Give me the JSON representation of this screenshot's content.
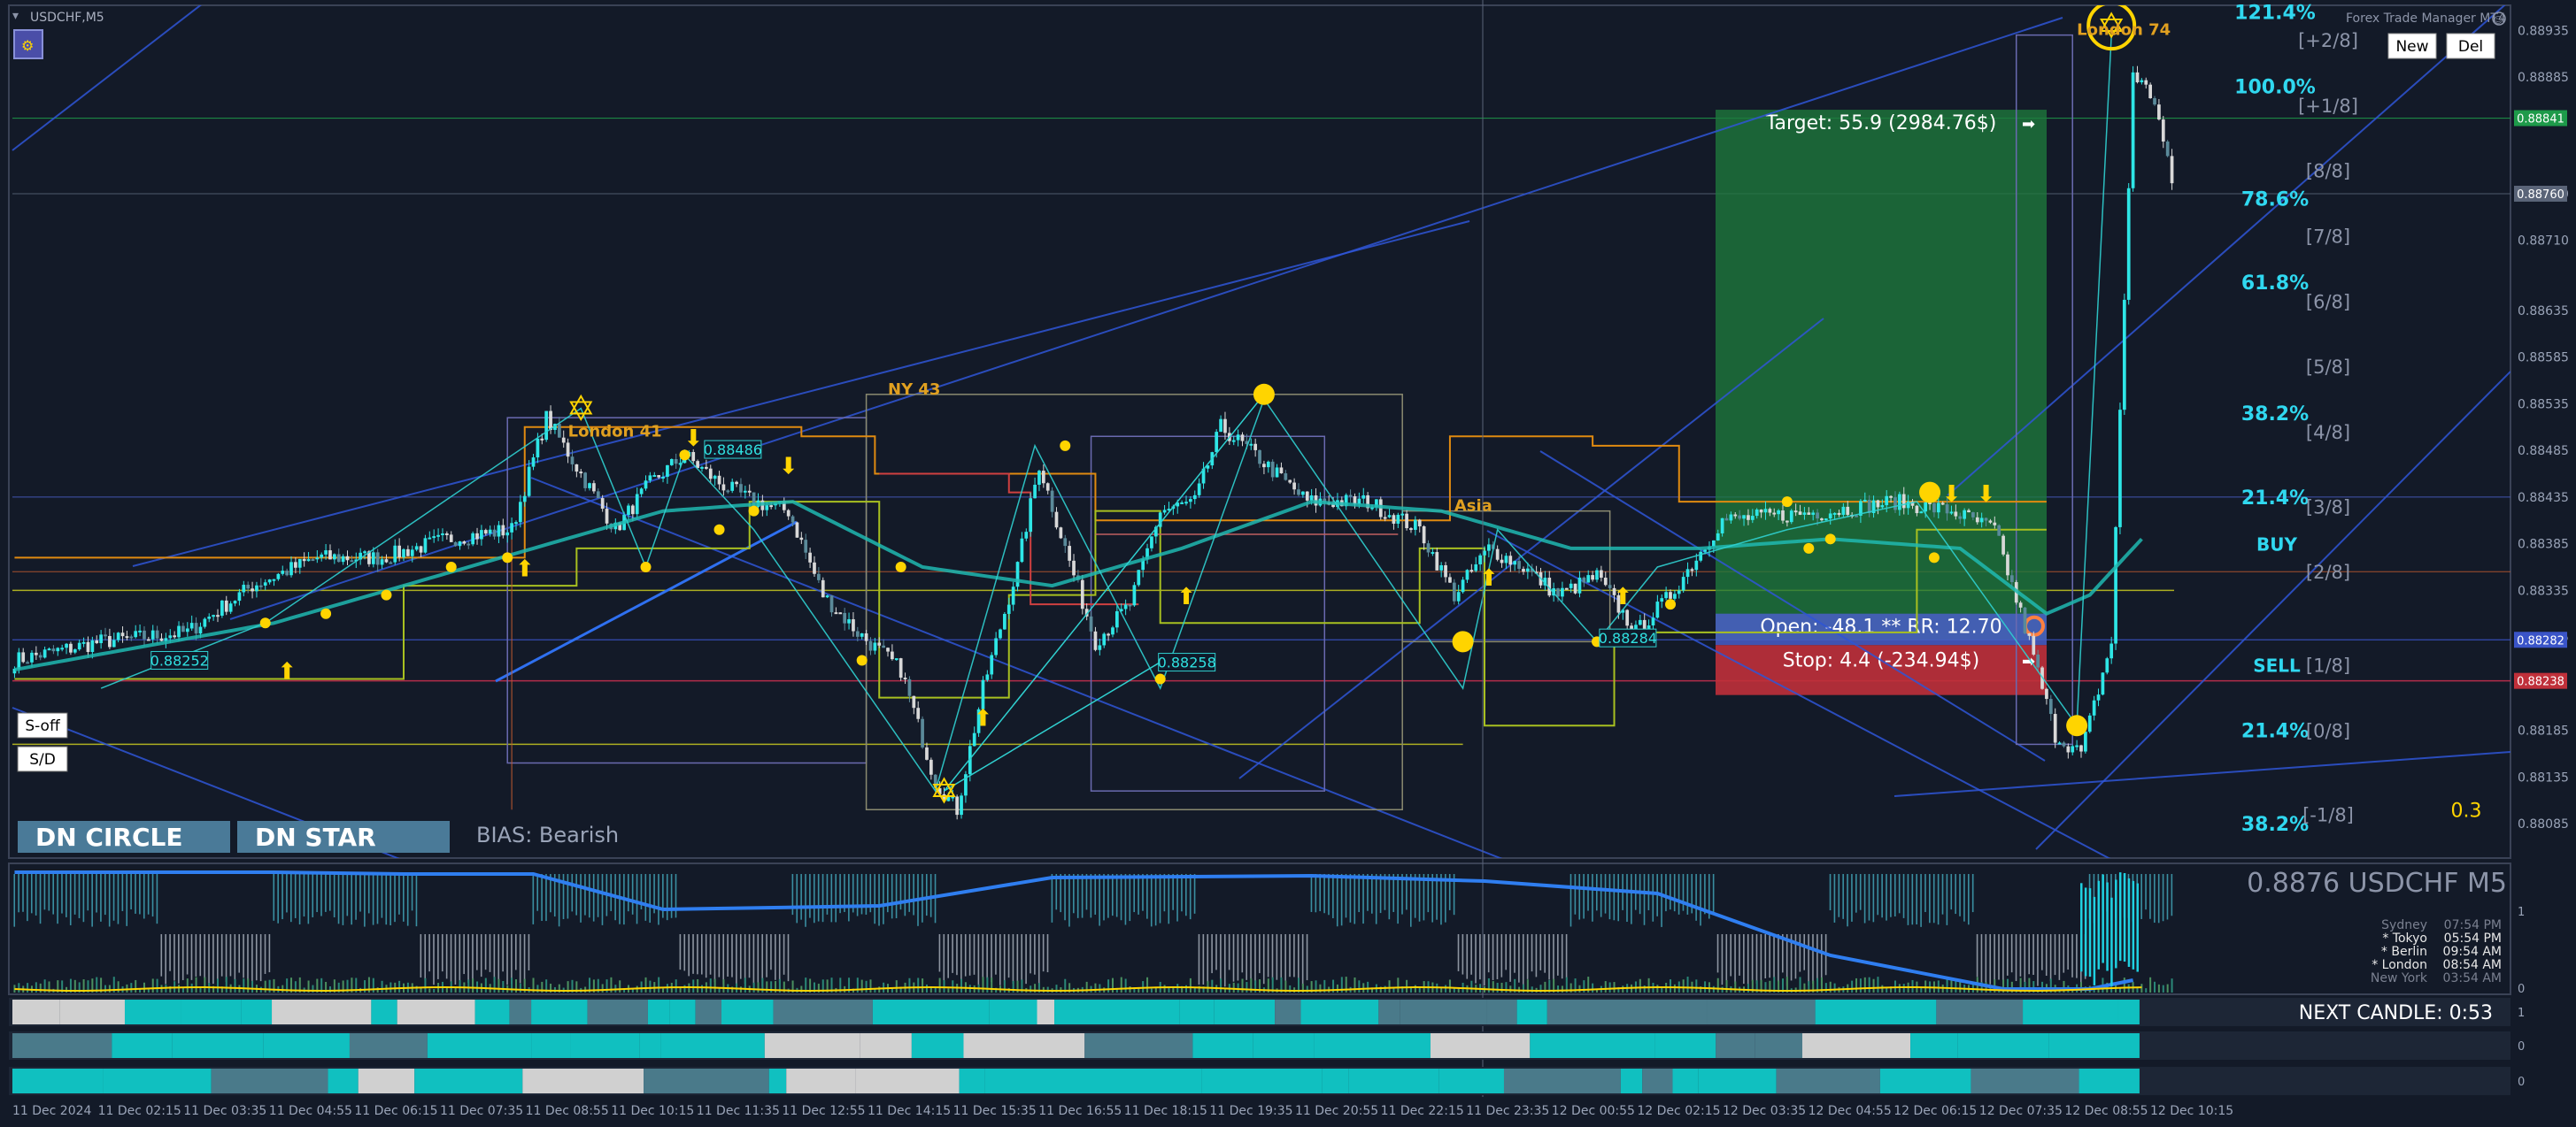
{
  "window": {
    "symbol_title": "USDCHF,M5",
    "toolbar_icon": "js-icon",
    "brand": "Forex Trade Manager MT4",
    "brand_icon": "smiley-icon",
    "new_label": "New",
    "del_label": "Del",
    "s_off_label": "S-off",
    "s_d_label": "S/D"
  },
  "colors": {
    "background": "#131a28",
    "bull_candle": "#2ee6e6",
    "bear_candle": "#d8d8d8",
    "target_zone": "#1e7a3c",
    "stop_zone": "#c0303a",
    "open_zone": "#4a5ec8",
    "fib_label": "#30d8f0",
    "murrey_label": "#8c94a8",
    "arrow_yellow": "#ffd400",
    "session_label": "#e0a020",
    "ma_teal": "#20b8b0",
    "trend_blue": "#2f55d6"
  },
  "chart_data": {
    "type": "candlestick",
    "symbol": "USDCHF",
    "timeframe": "M5",
    "ylim": [
      0.8805,
      0.8896
    ],
    "price_ticks": [
      "0.88935",
      "0.88885",
      "0.88760",
      "0.88710",
      "0.88635",
      "0.88585",
      "0.88535",
      "0.88485",
      "0.88435",
      "0.88385",
      "0.88335",
      "0.88285",
      "0.88185",
      "0.88135",
      "0.88085"
    ],
    "price_tags": [
      {
        "label": "0.88841",
        "price": 0.88841,
        "color": "#1e9a4a"
      },
      {
        "label": "0.88760",
        "price": 0.8876,
        "color": "#5a6478"
      },
      {
        "label": "0.88282",
        "price": 0.88282,
        "color": "#3a54c8"
      },
      {
        "label": "0.88238",
        "price": 0.88238,
        "color": "#c0303a"
      }
    ],
    "time_labels": [
      "11 Dec 2024",
      "11 Dec 02:15",
      "11 Dec 03:35",
      "11 Dec 04:55",
      "11 Dec 06:15",
      "11 Dec 07:35",
      "11 Dec 08:55",
      "11 Dec 10:15",
      "11 Dec 11:35",
      "11 Dec 12:55",
      "11 Dec 14:15",
      "11 Dec 15:35",
      "11 Dec 16:55",
      "11 Dec 18:15",
      "11 Dec 19:35",
      "11 Dec 20:55",
      "11 Dec 22:15",
      "11 Dec 23:35",
      "12 Dec 00:55",
      "12 Dec 02:15",
      "12 Dec 03:35",
      "12 Dec 04:55",
      "12 Dec 06:15",
      "12 Dec 07:35",
      "12 Dec 08:55",
      "12 Dec 10:15"
    ],
    "price_anchors": [
      [
        0,
        0.8826
      ],
      [
        20,
        0.8828
      ],
      [
        40,
        0.8829
      ],
      [
        55,
        0.8834
      ],
      [
        70,
        0.8837
      ],
      [
        85,
        0.8837
      ],
      [
        100,
        0.8839
      ],
      [
        115,
        0.884
      ],
      [
        123,
        0.8852
      ],
      [
        131,
        0.8846
      ],
      [
        139,
        0.884
      ],
      [
        147,
        0.8845
      ],
      [
        155,
        0.8848
      ],
      [
        163,
        0.8845
      ],
      [
        171,
        0.8843
      ],
      [
        179,
        0.8842
      ],
      [
        187,
        0.8833
      ],
      [
        195,
        0.8829
      ],
      [
        205,
        0.8825
      ],
      [
        213,
        0.8813
      ],
      [
        218,
        0.881
      ],
      [
        224,
        0.8823
      ],
      [
        232,
        0.8836
      ],
      [
        237,
        0.8847
      ],
      [
        243,
        0.8838
      ],
      [
        250,
        0.8828
      ],
      [
        258,
        0.8832
      ],
      [
        265,
        0.8842
      ],
      [
        273,
        0.8843
      ],
      [
        279,
        0.8851
      ],
      [
        287,
        0.8848
      ],
      [
        299,
        0.8843
      ],
      [
        313,
        0.8843
      ],
      [
        325,
        0.884
      ],
      [
        333,
        0.8833
      ],
      [
        341,
        0.8838
      ],
      [
        349,
        0.8836
      ],
      [
        357,
        0.8833
      ],
      [
        366,
        0.8835
      ],
      [
        375,
        0.8829
      ],
      [
        383,
        0.8833
      ],
      [
        395,
        0.8841
      ],
      [
        420,
        0.8842
      ],
      [
        435,
        0.8843
      ],
      [
        448,
        0.8842
      ],
      [
        458,
        0.884
      ],
      [
        466,
        0.8828
      ],
      [
        472,
        0.8818
      ],
      [
        478,
        0.8816
      ],
      [
        485,
        0.8828
      ],
      [
        490,
        0.8889
      ],
      [
        495,
        0.8886
      ],
      [
        499,
        0.8877
      ]
    ],
    "candle_count": 500,
    "moving_average": [
      [
        0,
        0.8825
      ],
      [
        60,
        0.883
      ],
      [
        120,
        0.8838
      ],
      [
        150,
        0.8842
      ],
      [
        180,
        0.8843
      ],
      [
        210,
        0.8836
      ],
      [
        240,
        0.8834
      ],
      [
        270,
        0.8838
      ],
      [
        300,
        0.8843
      ],
      [
        330,
        0.8842
      ],
      [
        360,
        0.8838
      ],
      [
        390,
        0.8838
      ],
      [
        420,
        0.8839
      ],
      [
        450,
        0.8838
      ],
      [
        470,
        0.8831
      ],
      [
        480,
        0.8833
      ],
      [
        492,
        0.8839
      ]
    ],
    "zones": {
      "target": {
        "label": "Target: 55.9 (2984.76$)",
        "top": 0.8885,
        "bottom": 0.88282
      },
      "open": {
        "label": "Open: -48.1 ** RR: 12.70",
        "top": 0.8831,
        "bottom": 0.88282
      },
      "stop": {
        "label": "Stop: 4.4 (-234.94$)",
        "top": 0.88282,
        "bottom": 0.88238
      }
    },
    "fib_levels": [
      {
        "label": "121.4%",
        "price": 0.88955
      },
      {
        "label": "100.0%",
        "price": 0.88875
      },
      {
        "label": "78.6%",
        "price": 0.88755
      },
      {
        "label": "61.8%",
        "price": 0.88665
      },
      {
        "label": "38.2%",
        "price": 0.88525
      },
      {
        "label": "21.4%",
        "price": 0.88435
      },
      {
        "label": "21.4%",
        "price": 0.88185
      },
      {
        "label": "38.2%",
        "price": 0.88085
      }
    ],
    "murrey_levels": [
      {
        "label": "[+2/8]",
        "price": 0.88925
      },
      {
        "label": "[+1/8]",
        "price": 0.88855
      },
      {
        "label": "[8/8]",
        "price": 0.88785
      },
      {
        "label": "[7/8]",
        "price": 0.88715
      },
      {
        "label": "[6/8]",
        "price": 0.88645
      },
      {
        "label": "[5/8]",
        "price": 0.88575
      },
      {
        "label": "[4/8]",
        "price": 0.88505
      },
      {
        "label": "[3/8]",
        "price": 0.88425
      },
      {
        "label": "[2/8]",
        "price": 0.88355
      },
      {
        "label": "[1/8]",
        "price": 0.88255
      },
      {
        "label": "[0/8]",
        "price": 0.88185
      },
      {
        "label": "[-1/8]",
        "price": 0.88095
      }
    ],
    "side_labels": {
      "buy": "BUY",
      "sell": "SELL",
      "ratio": "0.3"
    },
    "session_labels": [
      {
        "label": "London 41",
        "bar": 128,
        "price": 0.885
      },
      {
        "label": "NY 43",
        "bar": 202,
        "price": 0.88545
      },
      {
        "label": "Asia",
        "bar": 333,
        "price": 0.8842
      },
      {
        "label": "London 74",
        "bar": 477,
        "price": 0.8893
      }
    ],
    "price_boxes": [
      {
        "label": "0.88252",
        "bar": 32,
        "price": 0.8826
      },
      {
        "label": "0.88486",
        "bar": 160,
        "price": 0.88486
      },
      {
        "label": "0.88258",
        "bar": 265,
        "price": 0.88258
      },
      {
        "label": "0.88284",
        "bar": 367,
        "price": 0.88284
      }
    ],
    "signals": {
      "up_arrows": [
        [
          63,
          0.8824
        ],
        [
          118,
          0.8835
        ],
        [
          224,
          0.8819
        ],
        [
          271,
          0.8832
        ],
        [
          341,
          0.8834
        ],
        [
          372,
          0.8832
        ]
      ],
      "down_arrows": [
        [
          157,
          0.8849
        ],
        [
          179,
          0.8846
        ],
        [
          448,
          0.8843
        ],
        [
          456,
          0.8843
        ]
      ],
      "stars": [
        [
          131,
          0.8853
        ],
        [
          215,
          0.8812
        ],
        [
          485,
          0.8894
        ]
      ],
      "circles": [
        [
          289,
          0.88545
        ],
        [
          335,
          0.8828
        ],
        [
          443,
          0.8844
        ],
        [
          477,
          0.8819
        ]
      ]
    },
    "bias_label": "BIAS: Bearish",
    "pattern_buttons": [
      "DN CIRCLE",
      "DN STAR"
    ],
    "indicator": {
      "symbol_price": "0.8876 USDCHF M5",
      "sessions": [
        {
          "name": "Sydney",
          "time": "07:54 PM",
          "active": false
        },
        {
          "name": "* Tokyo",
          "time": "05:54 PM",
          "active": true
        },
        {
          "name": "* Berlin",
          "time": "09:54 AM",
          "active": true
        },
        {
          "name": "* London",
          "time": "08:54 AM",
          "active": true
        },
        {
          "name": "New York",
          "time": "03:54 AM",
          "active": false
        }
      ],
      "ticks": [
        "1",
        "0"
      ],
      "next_candle": "NEXT CANDLE: 0:53"
    }
  }
}
